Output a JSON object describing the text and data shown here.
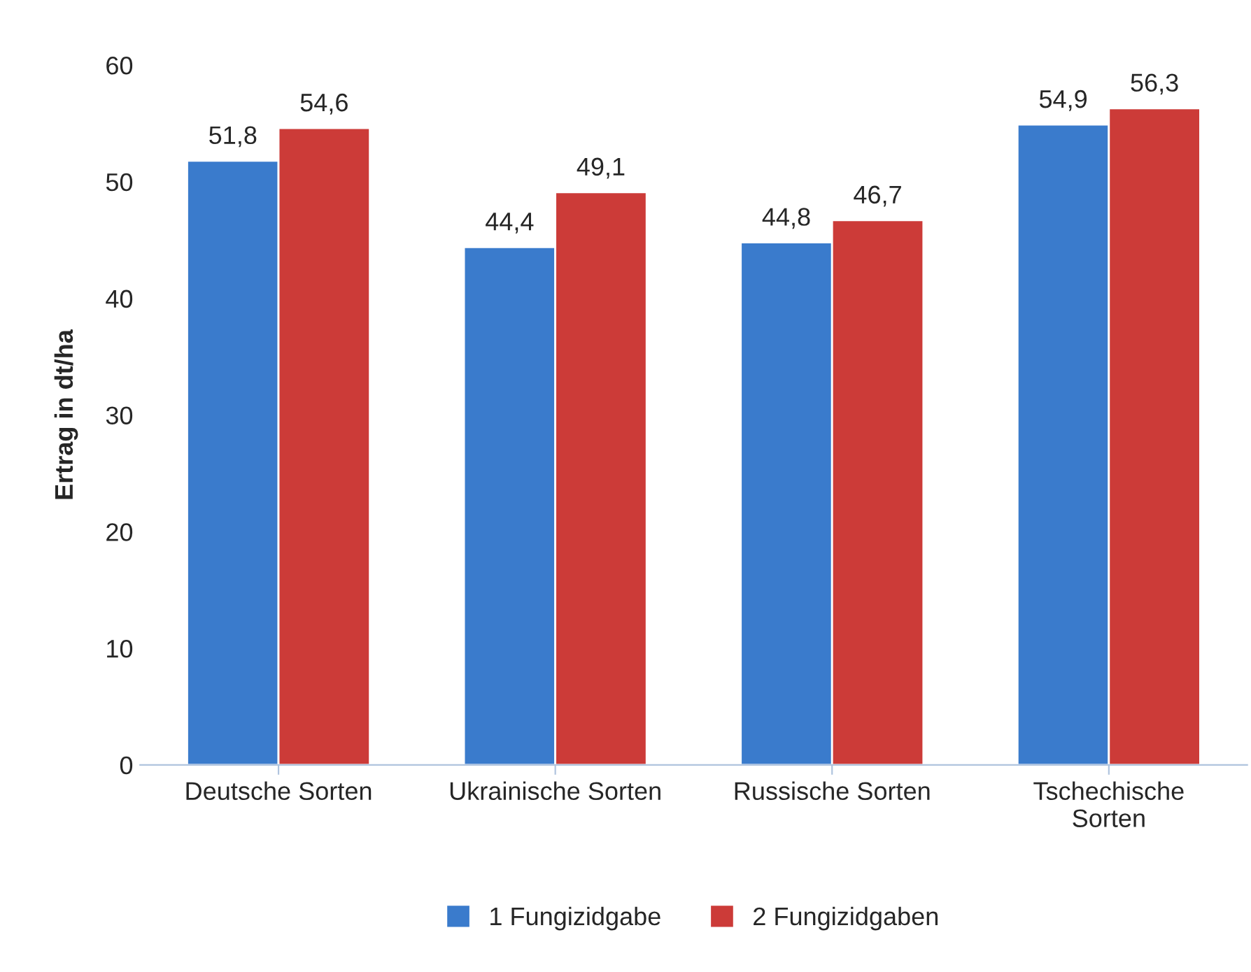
{
  "chart_data": {
    "type": "bar",
    "ylabel": "Ertrag in dt/ha",
    "categories": [
      "Deutsche Sorten",
      "Ukrainische Sorten",
      "Russische Sorten",
      "Tschechische\nSorten"
    ],
    "series": [
      {
        "name": "1 Fungizidgabe",
        "color": "#3a7bcc",
        "values": [
          51.8,
          44.4,
          44.8,
          54.9
        ],
        "value_labels": [
          "51,8",
          "44,4",
          "44,8",
          "54,9"
        ]
      },
      {
        "name": "2 Fungizidgaben",
        "color": "#cc3b38",
        "values": [
          54.6,
          49.1,
          46.7,
          56.3
        ],
        "value_labels": [
          "54,6",
          "49,1",
          "46,7",
          "56,3"
        ]
      }
    ],
    "ylim": [
      0,
      60
    ],
    "yticks": [
      0,
      10,
      20,
      30,
      40,
      50,
      60
    ],
    "grid": false,
    "legend": "bottom"
  }
}
